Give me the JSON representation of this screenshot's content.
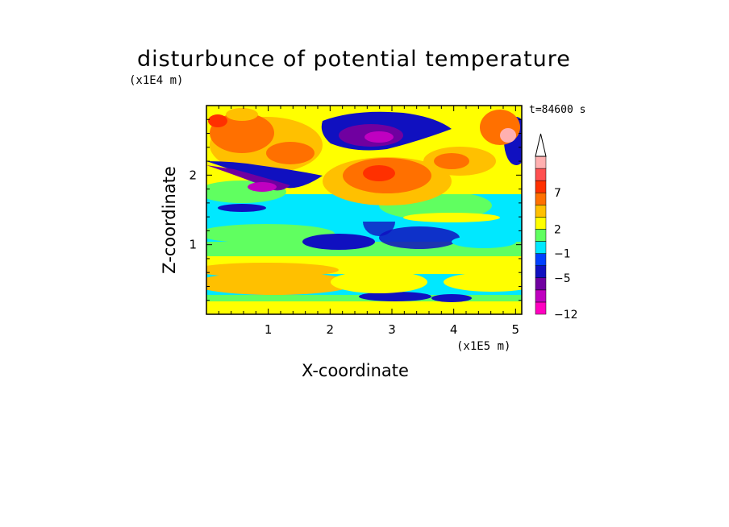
{
  "chart_data": {
    "type": "heatmap",
    "title": "disturbunce of potential temperature",
    "xlabel": "X-coordinate",
    "ylabel": "Z-coordinate",
    "x_unit": "(x1E5 m)",
    "z_unit": "(x1E4 m)",
    "annotation": "t=84600 s",
    "xlim": [
      0,
      5.1
    ],
    "ylim": [
      0,
      3.0
    ],
    "x_ticks": [
      1,
      2,
      3,
      4,
      5
    ],
    "y_ticks": [
      1,
      2
    ],
    "colorbar": {
      "labels": [
        "7",
        "2",
        "−1",
        "−5",
        "−12"
      ],
      "colors": [
        "#ff00c0",
        "#c000c0",
        "#7000a0",
        "#1010c0",
        "#0040ff",
        "#00e8ff",
        "#60ff60",
        "#ffff00",
        "#ffc000",
        "#ff7000",
        "#ff3000",
        "#ff5050",
        "#ffb0b0"
      ],
      "extend": "max"
    }
  }
}
